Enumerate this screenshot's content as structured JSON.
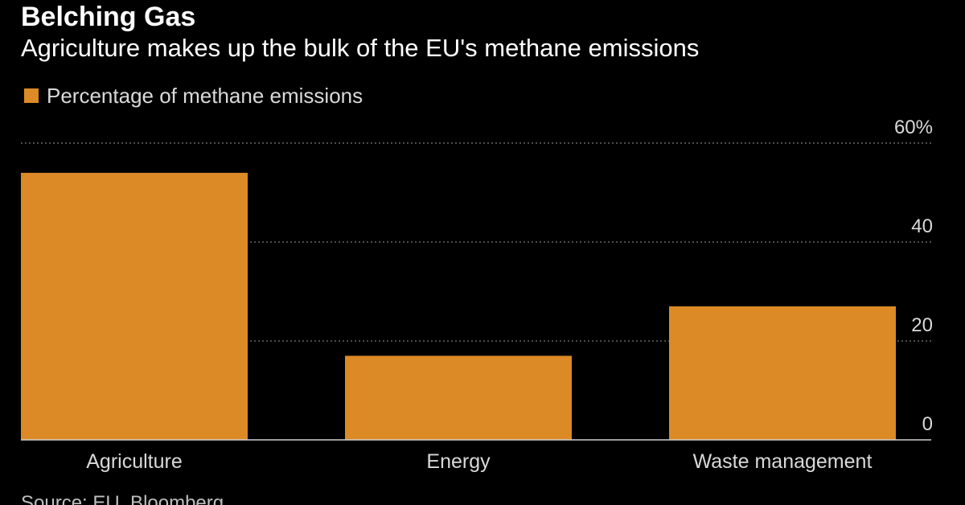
{
  "title": "Belching Gas",
  "subtitle": "Agriculture makes up the bulk of the EU's methane emissions",
  "source": "Source: EU, Bloomberg",
  "colors": {
    "bar": "#DB8A25",
    "background": "#000000",
    "gridline": "#7a7a7a",
    "baseline": "#d0d0d0",
    "text": "#d9d9d9"
  },
  "chart_data": {
    "type": "bar",
    "categories": [
      "Agriculture",
      "Energy",
      "Waste management"
    ],
    "series": [
      {
        "name": "Percentage of methane emissions",
        "values": [
          54,
          17,
          27
        ]
      }
    ],
    "ylim": [
      0,
      60
    ],
    "yticks": [
      0,
      20,
      40,
      60
    ],
    "ytick_labels": [
      "0",
      "20",
      "40",
      "60%"
    ],
    "y_axis_side": "right",
    "grid": true,
    "legend_position": "top-left"
  }
}
